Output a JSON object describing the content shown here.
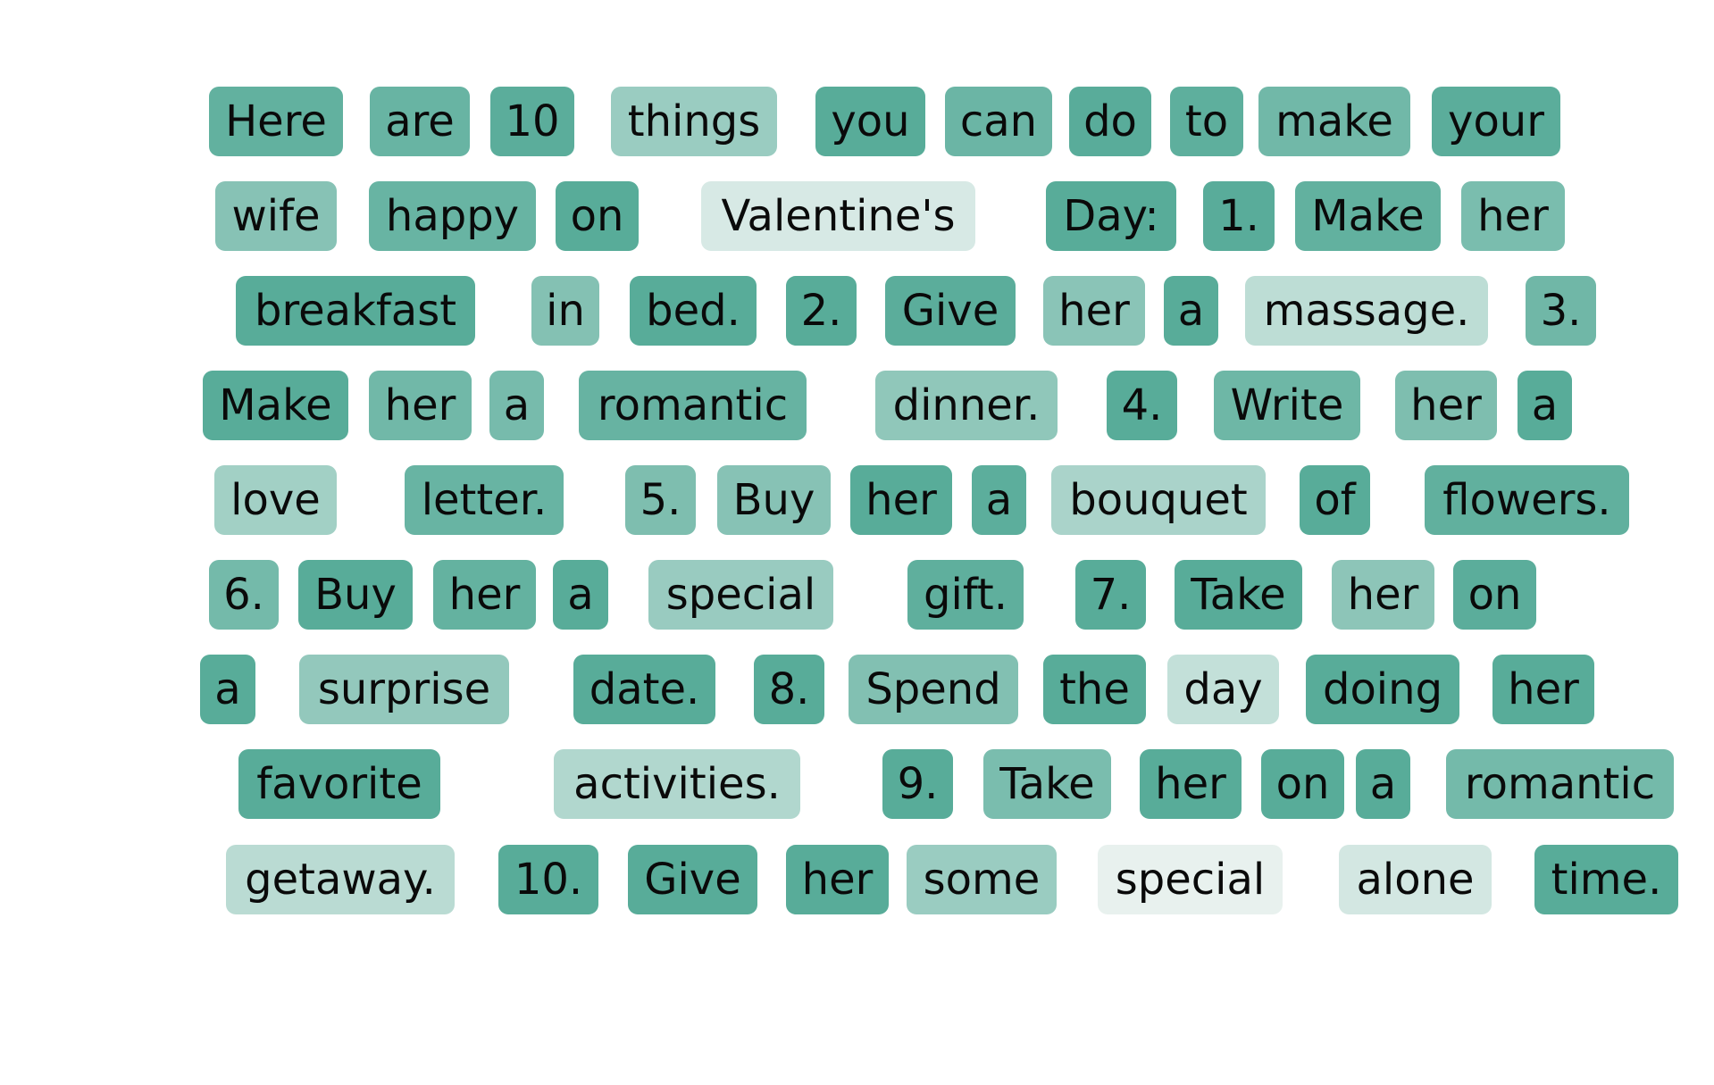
{
  "colors": {
    "scale_low": "#eef4f2",
    "scale_high": "#56ab98",
    "text": "#0a0a0a",
    "background": "#ffffff"
  },
  "tokens": [
    {
      "text": "Here",
      "weight": 0.92
    },
    {
      "text": "are",
      "weight": 0.88
    },
    {
      "text": "10",
      "weight": 0.97
    },
    {
      "text": "things",
      "weight": 0.55
    },
    {
      "text": "you",
      "weight": 0.99
    },
    {
      "text": "can",
      "weight": 0.86
    },
    {
      "text": "do",
      "weight": 0.98
    },
    {
      "text": "to",
      "weight": 0.95
    },
    {
      "text": "make",
      "weight": 0.82
    },
    {
      "text": "your",
      "weight": 0.97
    },
    {
      "text": "wife",
      "weight": 0.68
    },
    {
      "text": "happy",
      "weight": 0.88
    },
    {
      "text": "on",
      "weight": 0.99
    },
    {
      "text": "Valentine's",
      "weight": 0.15
    },
    {
      "text": "Day:",
      "weight": 0.99
    },
    {
      "text": "1.",
      "weight": 0.98
    },
    {
      "text": "Make",
      "weight": 0.92
    },
    {
      "text": "her",
      "weight": 0.76
    },
    {
      "text": "breakfast",
      "weight": 0.99
    },
    {
      "text": "in",
      "weight": 0.7
    },
    {
      "text": "bed.",
      "weight": 0.99
    },
    {
      "text": "2.",
      "weight": 0.99
    },
    {
      "text": "Give",
      "weight": 0.97
    },
    {
      "text": "her",
      "weight": 0.66
    },
    {
      "text": "a",
      "weight": 0.99
    },
    {
      "text": "massage.",
      "weight": 0.32
    },
    {
      "text": "3.",
      "weight": 0.83
    },
    {
      "text": "Make",
      "weight": 0.99
    },
    {
      "text": "her",
      "weight": 0.82
    },
    {
      "text": "a",
      "weight": 0.78
    },
    {
      "text": "romantic",
      "weight": 0.89
    },
    {
      "text": "dinner.",
      "weight": 0.62
    },
    {
      "text": "4.",
      "weight": 0.99
    },
    {
      "text": "Write",
      "weight": 0.84
    },
    {
      "text": "her",
      "weight": 0.74
    },
    {
      "text": "a",
      "weight": 0.99
    },
    {
      "text": "love",
      "weight": 0.5
    },
    {
      "text": "letter.",
      "weight": 0.88
    },
    {
      "text": "5.",
      "weight": 0.74
    },
    {
      "text": "Buy",
      "weight": 0.68
    },
    {
      "text": "her",
      "weight": 0.99
    },
    {
      "text": "a",
      "weight": 0.96
    },
    {
      "text": "bouquet",
      "weight": 0.45
    },
    {
      "text": "of",
      "weight": 0.99
    },
    {
      "text": "flowers.",
      "weight": 0.93
    },
    {
      "text": "6.",
      "weight": 0.8
    },
    {
      "text": "Buy",
      "weight": 0.99
    },
    {
      "text": "her",
      "weight": 0.91
    },
    {
      "text": "a",
      "weight": 0.99
    },
    {
      "text": "special",
      "weight": 0.56
    },
    {
      "text": "gift.",
      "weight": 0.94
    },
    {
      "text": "7.",
      "weight": 0.99
    },
    {
      "text": "Take",
      "weight": 0.99
    },
    {
      "text": "her",
      "weight": 0.64
    },
    {
      "text": "on",
      "weight": 0.97
    },
    {
      "text": "a",
      "weight": 0.99
    },
    {
      "text": "surprise",
      "weight": 0.6
    },
    {
      "text": "date.",
      "weight": 0.99
    },
    {
      "text": "8.",
      "weight": 0.99
    },
    {
      "text": "Spend",
      "weight": 0.71
    },
    {
      "text": "the",
      "weight": 0.99
    },
    {
      "text": "day",
      "weight": 0.28
    },
    {
      "text": "doing",
      "weight": 0.99
    },
    {
      "text": "her",
      "weight": 0.99
    },
    {
      "text": "favorite",
      "weight": 0.99
    },
    {
      "text": "activities.",
      "weight": 0.4
    },
    {
      "text": "9.",
      "weight": 0.99
    },
    {
      "text": "Take",
      "weight": 0.76
    },
    {
      "text": "her",
      "weight": 0.99
    },
    {
      "text": "on",
      "weight": 0.99
    },
    {
      "text": "a",
      "weight": 0.99
    },
    {
      "text": "romantic",
      "weight": 0.8
    },
    {
      "text": "getaway.",
      "weight": 0.34
    },
    {
      "text": "10.",
      "weight": 0.99
    },
    {
      "text": "Give",
      "weight": 0.99
    },
    {
      "text": "her",
      "weight": 0.99
    },
    {
      "text": "some",
      "weight": 0.55
    },
    {
      "text": "special",
      "weight": 0.04
    },
    {
      "text": "alone",
      "weight": 0.18
    },
    {
      "text": "time.",
      "weight": 0.99
    }
  ]
}
